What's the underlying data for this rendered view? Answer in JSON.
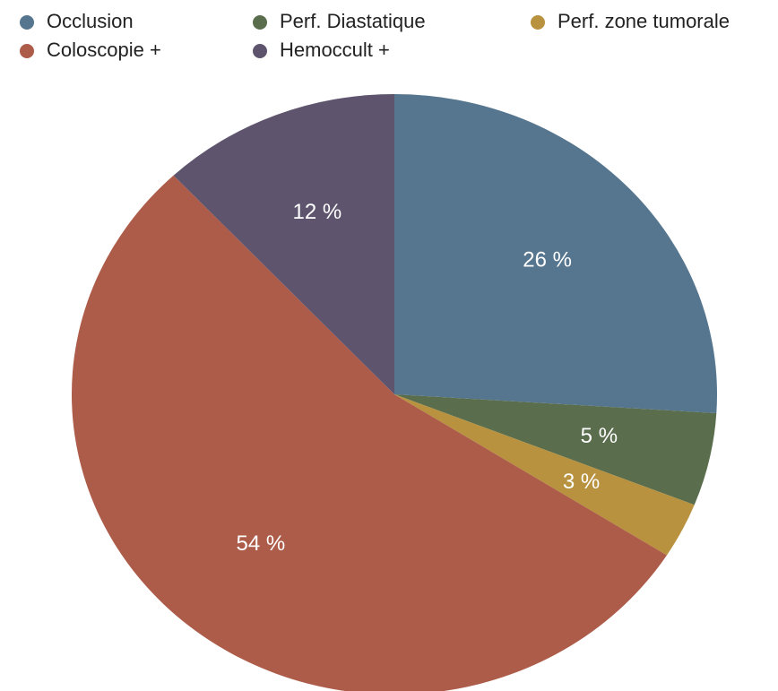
{
  "chart_data": {
    "type": "pie",
    "categories": [
      "Occlusion",
      "Perf. Diastatique",
      "Perf. zone tumorale",
      "Coloscopie +",
      "Hemoccult +"
    ],
    "values": [
      26,
      5,
      3,
      54,
      12
    ],
    "value_labels": [
      "26 %",
      "5 %",
      "3 %",
      "54 %",
      "12 %"
    ],
    "colors": [
      "#56768f",
      "#5a6e4e",
      "#b8923f",
      "#ad5c4a",
      "#5e546e"
    ],
    "legend": "top"
  }
}
